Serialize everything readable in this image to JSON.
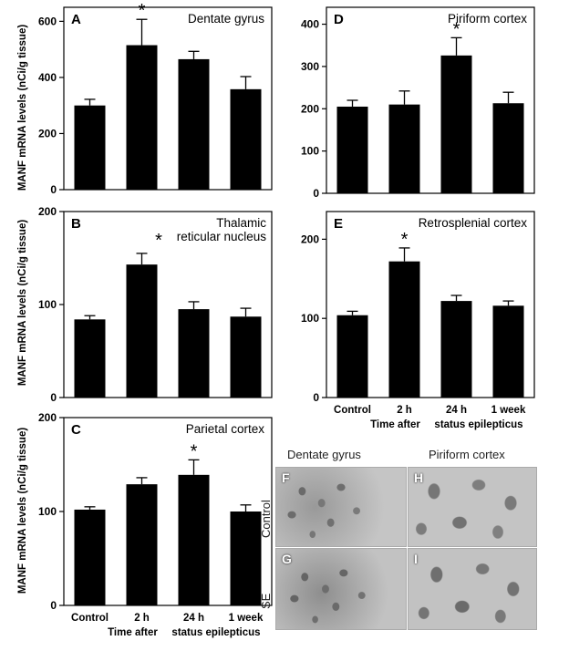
{
  "figure": {
    "ylabel": "MANF mRNA levels (nCi/g tissue)",
    "time_caption_parts": [
      "Time after",
      "status epilepticus"
    ]
  },
  "chart_data": [
    {
      "type": "bar",
      "panel": "A",
      "title": "Dentate gyrus",
      "categories": [
        "Control",
        "2 h",
        "24 h",
        "1 week"
      ],
      "values": [
        300,
        515,
        465,
        358
      ],
      "errors": [
        22,
        92,
        28,
        45
      ],
      "significant": [
        false,
        true,
        false,
        false
      ],
      "ylim": [
        0,
        650
      ],
      "yticks": [
        0,
        200,
        400,
        600
      ],
      "ylabel": "MANF mRNA levels (nCi/g tissue)",
      "show_xticklabels": false
    },
    {
      "type": "bar",
      "panel": "B",
      "title": "Thalamic reticular nucleus",
      "title_lines": [
        "Thalamic",
        "reticular nucleus"
      ],
      "categories": [
        "Control",
        "2 h",
        "24 h",
        "1 week"
      ],
      "values": [
        84,
        143,
        95,
        87
      ],
      "errors": [
        4,
        12,
        8,
        9
      ],
      "significant": [
        false,
        false,
        false,
        false
      ],
      "title_star": true,
      "ylim": [
        0,
        200
      ],
      "yticks": [
        0,
        100,
        200
      ],
      "ylabel": "MANF mRNA levels (nCi/g tissue)",
      "show_xticklabels": false
    },
    {
      "type": "bar",
      "panel": "C",
      "title": "Parietal cortex",
      "categories": [
        "Control",
        "2 h",
        "24 h",
        "1 week"
      ],
      "values": [
        102,
        129,
        139,
        100
      ],
      "errors": [
        3,
        7,
        16,
        7
      ],
      "significant": [
        false,
        false,
        true,
        false
      ],
      "ylim": [
        0,
        200
      ],
      "yticks": [
        0,
        100,
        200
      ],
      "ylabel": "MANF mRNA levels (nCi/g tissue)",
      "show_xticklabels": true,
      "xlabel": "Time after status epilepticus"
    },
    {
      "type": "bar",
      "panel": "D",
      "title": "Piriform cortex",
      "categories": [
        "Control",
        "2 h",
        "24 h",
        "1 week"
      ],
      "values": [
        205,
        210,
        326,
        213
      ],
      "errors": [
        15,
        32,
        42,
        26
      ],
      "significant": [
        false,
        false,
        true,
        false
      ],
      "ylim": [
        0,
        440
      ],
      "yticks": [
        0,
        100,
        200,
        300,
        400
      ],
      "show_xticklabels": false
    },
    {
      "type": "bar",
      "panel": "E",
      "title": "Retrosplenial cortex",
      "categories": [
        "Control",
        "2 h",
        "24 h",
        "1 week"
      ],
      "values": [
        104,
        172,
        122,
        116
      ],
      "errors": [
        5,
        17,
        7,
        6
      ],
      "significant": [
        false,
        true,
        false,
        false
      ],
      "ylim": [
        0,
        235
      ],
      "yticks": [
        0,
        100,
        200
      ],
      "show_xticklabels": true,
      "xlabel": "Time after status epilepticus"
    }
  ],
  "micrographs": {
    "column_titles": [
      "Dentate gyrus",
      "Piriform cortex"
    ],
    "row_labels": [
      "Control",
      "SE"
    ],
    "panels": [
      {
        "letter": "F",
        "region": "Dentate gyrus",
        "condition": "Control"
      },
      {
        "letter": "H",
        "region": "Piriform cortex",
        "condition": "Control"
      },
      {
        "letter": "G",
        "region": "Dentate gyrus",
        "condition": "SE"
      },
      {
        "letter": "I",
        "region": "Piriform cortex",
        "condition": "SE"
      }
    ]
  }
}
